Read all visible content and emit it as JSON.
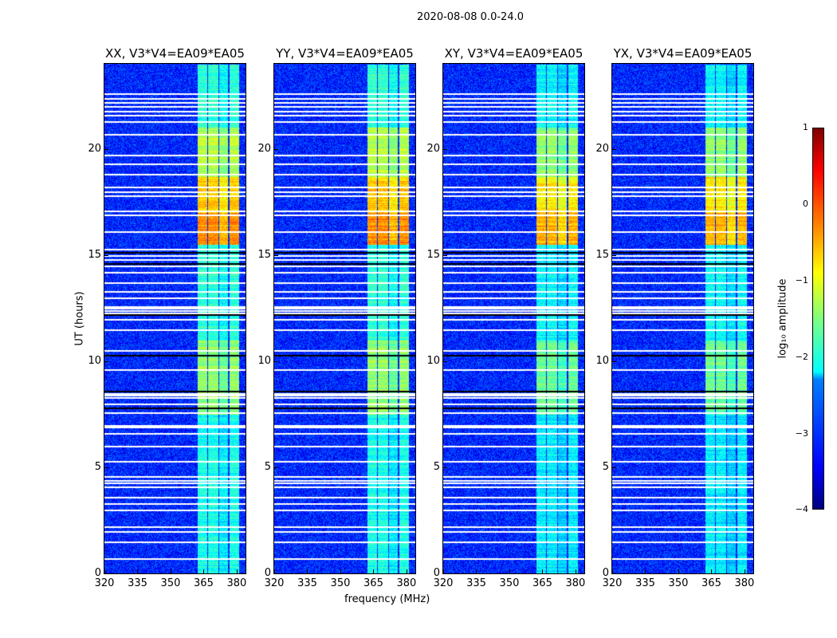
{
  "suptitle": "2020-08-08 0.0-24.0",
  "chart_data": {
    "type": "heatmap",
    "title": "2020-08-08 0.0-24.0",
    "xlabel": "frequency (MHz)",
    "ylabel": "UT (hours)",
    "xlim": [
      320,
      384
    ],
    "ylim": [
      0,
      24
    ],
    "xticks": [
      "320",
      "335",
      "350",
      "365",
      "380"
    ],
    "yticks": [
      "0",
      "5",
      "10",
      "15",
      "20"
    ],
    "panels": [
      {
        "title": "XX, V3*V4=EA09*EA05",
        "peak_scale": 1.0
      },
      {
        "title": "YY, V3*V4=EA09*EA05",
        "peak_scale": 1.0
      },
      {
        "title": "XY, V3*V4=EA09*EA05",
        "peak_scale": 0.9
      },
      {
        "title": "YX, V3*V4=EA09*EA05",
        "peak_scale": 0.9
      }
    ],
    "background_log_amplitude": -3.2,
    "rfi_band_mhz": [
      [
        362,
        366.5
      ],
      [
        367,
        371.5
      ],
      [
        372,
        376
      ],
      [
        376.5,
        381
      ]
    ],
    "rfi_levels": [
      {
        "hours": [
          0,
          7.5
        ],
        "log_amplitude": -2.0
      },
      {
        "hours": [
          7.5,
          11
        ],
        "log_amplitude": -1.4
      },
      {
        "hours": [
          11,
          15.5
        ],
        "log_amplitude": -1.9
      },
      {
        "hours": [
          15.5,
          17
        ],
        "log_amplitude": -0.3
      },
      {
        "hours": [
          17,
          18.7
        ],
        "log_amplitude": -0.6
      },
      {
        "hours": [
          18.7,
          21
        ],
        "log_amplitude": -1.2
      },
      {
        "hours": [
          21,
          24
        ],
        "log_amplitude": -1.9
      }
    ],
    "flagged_hours": [
      0.7,
      1.5,
      2.0,
      2.2,
      3.0,
      3.3,
      3.6,
      4.1,
      4.3,
      4.4,
      4.6,
      5.3,
      6.0,
      6.6,
      6.9,
      7.0,
      7.6,
      8.0,
      8.3,
      8.4,
      8.5,
      9.6,
      10.5,
      11.5,
      12.0,
      12.3,
      12.4,
      12.5,
      12.6,
      13.0,
      13.3,
      13.7,
      14.2,
      14.5,
      14.8,
      15.0,
      15.3,
      16.1,
      16.9,
      17.1,
      17.8,
      18.0,
      18.2,
      18.8,
      19.3,
      19.7,
      20.7,
      21.3,
      21.6,
      21.8,
      22.0,
      22.2,
      22.4,
      22.6
    ],
    "zero_hours": [
      7.8,
      8.6,
      10.3,
      12.2,
      14.6,
      15.15
    ],
    "colorbar": {
      "label": "log₁₀ amplitude",
      "ticks": [
        "1",
        "0",
        "−1",
        "−2",
        "−3",
        "−4"
      ],
      "range": [
        -4,
        1
      ],
      "colormap": "jet"
    }
  }
}
